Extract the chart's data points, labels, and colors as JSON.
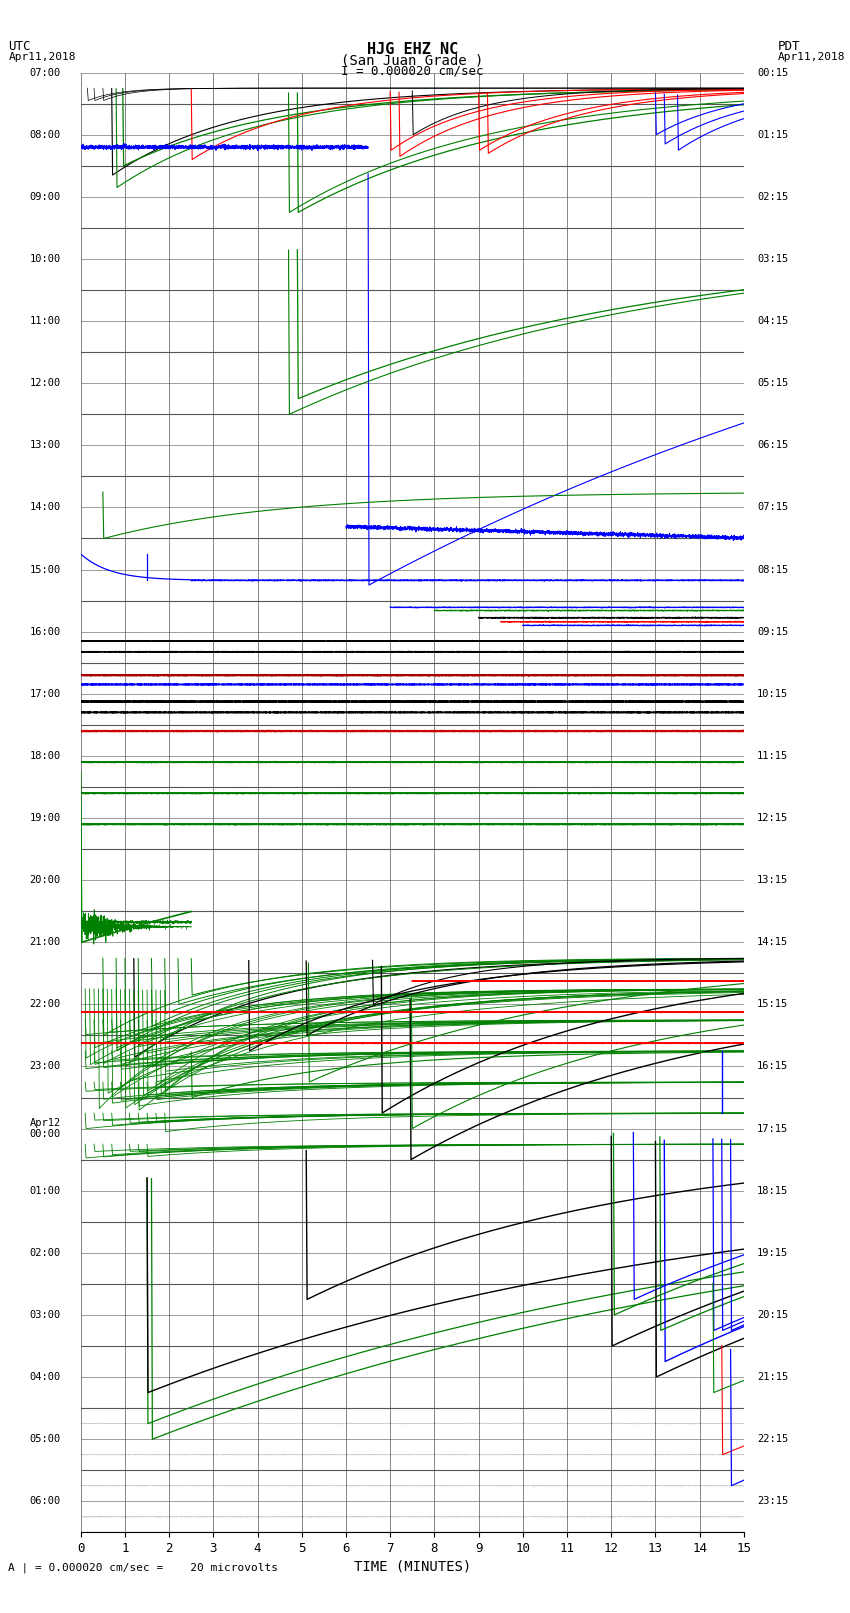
{
  "title_line1": "HJG EHZ NC",
  "title_line2": "(San Juan Grade )",
  "scale_label": "I = 0.000020 cm/sec",
  "bottom_label": "A | = 0.000020 cm/sec =    20 microvolts",
  "xlabel": "TIME (MINUTES)",
  "utc_times": [
    "07:00",
    "",
    "08:00",
    "",
    "09:00",
    "",
    "10:00",
    "",
    "11:00",
    "",
    "12:00",
    "",
    "13:00",
    "",
    "14:00",
    "",
    "15:00",
    "",
    "16:00",
    "",
    "17:00",
    "",
    "18:00",
    "",
    "19:00",
    "",
    "20:00",
    "",
    "21:00",
    "",
    "22:00",
    "",
    "23:00",
    "",
    "Apr12\n00:00",
    "",
    "01:00",
    "",
    "02:00",
    "",
    "03:00",
    "",
    "04:00",
    "",
    "05:00",
    "",
    "06:00"
  ],
  "pdt_times": [
    "00:15",
    "",
    "01:15",
    "",
    "02:15",
    "",
    "03:15",
    "",
    "04:15",
    "",
    "05:15",
    "",
    "06:15",
    "",
    "07:15",
    "",
    "08:15",
    "",
    "09:15",
    "",
    "10:15",
    "",
    "11:15",
    "",
    "12:15",
    "",
    "13:15",
    "",
    "14:15",
    "",
    "15:15",
    "",
    "16:15",
    "",
    "17:15",
    "",
    "18:15",
    "",
    "19:15",
    "",
    "20:15",
    "",
    "21:15",
    "",
    "22:15",
    "",
    "23:15"
  ]
}
